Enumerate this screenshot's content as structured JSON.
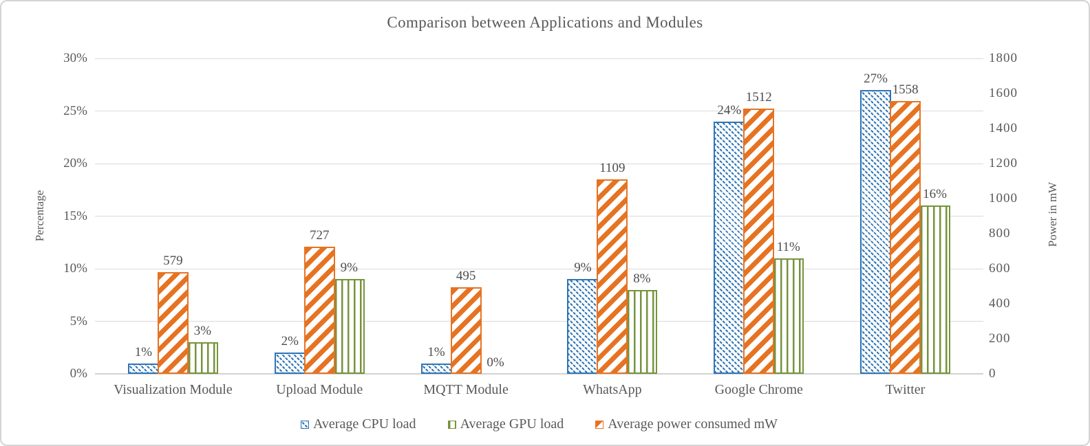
{
  "chart_data": {
    "type": "bar",
    "title": "Comparison between Applications and Modules",
    "categories": [
      "Visualization Module",
      "Upload Module",
      "MQTT Module",
      "WhatsApp",
      "Google Chrome",
      "Twitter"
    ],
    "left_axis": {
      "label": "Percentage",
      "min": 0,
      "max": 30,
      "ticks": [
        "0%",
        "5%",
        "10%",
        "15%",
        "20%",
        "25%",
        "30%"
      ]
    },
    "right_axis": {
      "label": "Power in mW",
      "min": 0,
      "max": 1800,
      "ticks": [
        "0",
        "200",
        "400",
        "600",
        "800",
        "1000",
        "1200",
        "1400",
        "1600",
        "1800"
      ]
    },
    "grid": true,
    "legend_position": "bottom",
    "legend_order": [
      0,
      2,
      1
    ],
    "series": [
      {
        "name": "Average CPU load",
        "axis": "left",
        "color": "#2E75B6",
        "pattern": "diagonal-dash-down",
        "values": [
          1,
          2,
          1,
          9,
          24,
          27
        ],
        "value_labels": [
          "1%",
          "2%",
          "1%",
          "9%",
          "24%",
          "27%"
        ]
      },
      {
        "name": "Average power consumed mW",
        "axis": "right",
        "color": "#E67322",
        "pattern": "diagonal-wide-up",
        "values": [
          579,
          727,
          495,
          1109,
          1512,
          1558
        ],
        "value_labels": [
          "579",
          "727",
          "495",
          "1109",
          "1512",
          "1558"
        ]
      },
      {
        "name": "Average GPU load",
        "axis": "left",
        "color": "#76933C",
        "pattern": "vertical-lines",
        "values": [
          3,
          9,
          0,
          8,
          11,
          16
        ],
        "value_labels": [
          "3%",
          "9%",
          "0%",
          "8%",
          "11%",
          "16%"
        ]
      }
    ],
    "colors": {
      "grid": "#D9D9D9",
      "axis_line": "#D2D2D2",
      "axis_text": "#595959",
      "title_text": "#595959",
      "data_label_text": "#4D4D4D"
    }
  }
}
